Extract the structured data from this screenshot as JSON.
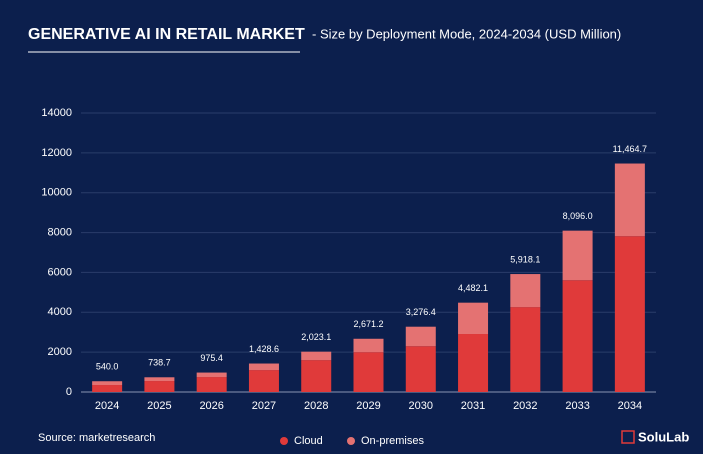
{
  "chart_data": {
    "type": "stacked_bar",
    "title": "GENERATIVE AI IN RETAIL MARKET",
    "subtitle": "- Size by Deployment Mode, 2024-2034 (USD Million)",
    "categories": [
      "2024",
      "2025",
      "2026",
      "2027",
      "2028",
      "2029",
      "2030",
      "2031",
      "2032",
      "2033",
      "2034"
    ],
    "series": [
      {
        "name": "Cloud",
        "color": "#e03a3a",
        "values": [
          350,
          550,
          750,
          1100,
          1600,
          2000,
          2300,
          2910,
          4260,
          5610,
          7820
        ]
      },
      {
        "name": "On-premises",
        "color": "#e47272",
        "values": [
          190,
          188.7,
          225.4,
          328.6,
          423.1,
          671.2,
          976.4,
          1572.1,
          1658.1,
          2486,
          3644.7
        ]
      }
    ],
    "totals": [
      540.0,
      738.7,
      975.4,
      1428.6,
      2023.1,
      2671.2,
      3276.4,
      4482.1,
      5918.1,
      8096.0,
      11464.7
    ],
    "total_labels": [
      "540.0",
      "738.7",
      "975.4",
      "1,428.6",
      "2,023.1",
      "2,671.2",
      "3,276.4",
      "4,482.1",
      "5,918.1",
      "8,096.0",
      "11,464.7"
    ],
    "ylim": [
      0,
      14000
    ],
    "yticks": [
      0,
      2000,
      4000,
      6000,
      8000,
      10000,
      12000,
      14000
    ],
    "grid": true,
    "legend": "bottom",
    "source": "Source: marketresearch",
    "logo": "SoluLab"
  }
}
